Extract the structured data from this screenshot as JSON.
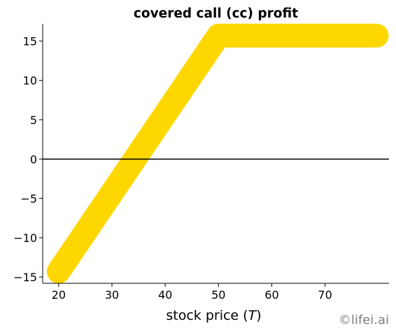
{
  "chart_data": {
    "type": "line",
    "title": "covered call (cc) profit",
    "xlabel_text": "stock price (",
    "xlabel_var": "T",
    "xlabel_close": ")",
    "ylabel": "",
    "xlim": [
      17,
      82
    ],
    "ylim": [
      -15.8,
      17.2
    ],
    "xticks": [
      20,
      30,
      40,
      50,
      60,
      70
    ],
    "yticks": [
      -15,
      -10,
      -5,
      0,
      5,
      10,
      15
    ],
    "ytick_labels": [
      "−15",
      "−10",
      "−5",
      "0",
      "5",
      "10",
      "15"
    ],
    "grid": false,
    "series": [
      {
        "x": [
          20,
          50,
          79.7
        ],
        "y": [
          -14.3,
          15.7,
          15.7
        ],
        "color": "#FFD700"
      }
    ],
    "reference_line": {
      "y": 0,
      "color": "#000000"
    },
    "watermark": "©lifei.ai"
  }
}
